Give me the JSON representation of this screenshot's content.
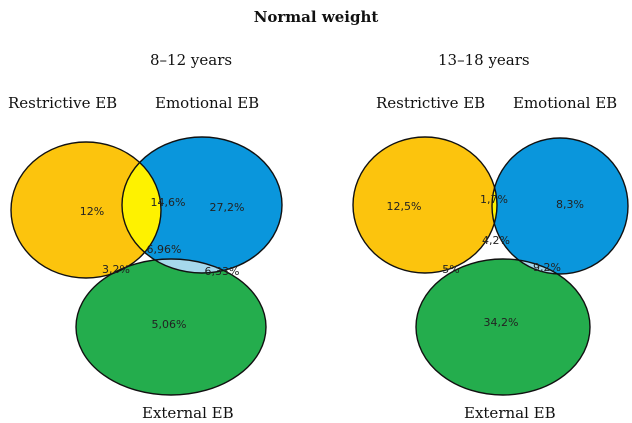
{
  "title": "Normal weight",
  "colors": {
    "restrictive": "#fcc40d",
    "emotional": "#0a96dc",
    "external": "#24ad4d",
    "restrictive_emotional": "#fef200",
    "restrictive_external": "#bce23a",
    "emotional_external": "#a6d9ec",
    "all_three": "#ffffff"
  },
  "panels": [
    {
      "subtitle": "8–12 years",
      "labels": {
        "restrictive": "Restrictive EB",
        "emotional": "Emotional EB",
        "external": "External EB"
      },
      "values": {
        "restrictive_only": "12%",
        "emotional_only": "27,2%",
        "external_only": "5,06%",
        "restrictive_emotional": "14,6%",
        "restrictive_external": "3,2%",
        "emotional_external": "6,33%",
        "all_three": "6,96%"
      }
    },
    {
      "subtitle": "13–18 years",
      "labels": {
        "restrictive": "Restrictive EB",
        "emotional": "Emotional EB",
        "external": "External EB"
      },
      "values": {
        "restrictive_only": "12,5%",
        "emotional_only": "8,3%",
        "external_only": "34,2%",
        "restrictive_emotional": "1,7%",
        "restrictive_external": "5%",
        "emotional_external": "9,2%",
        "all_three": "4,2%"
      }
    }
  ]
}
